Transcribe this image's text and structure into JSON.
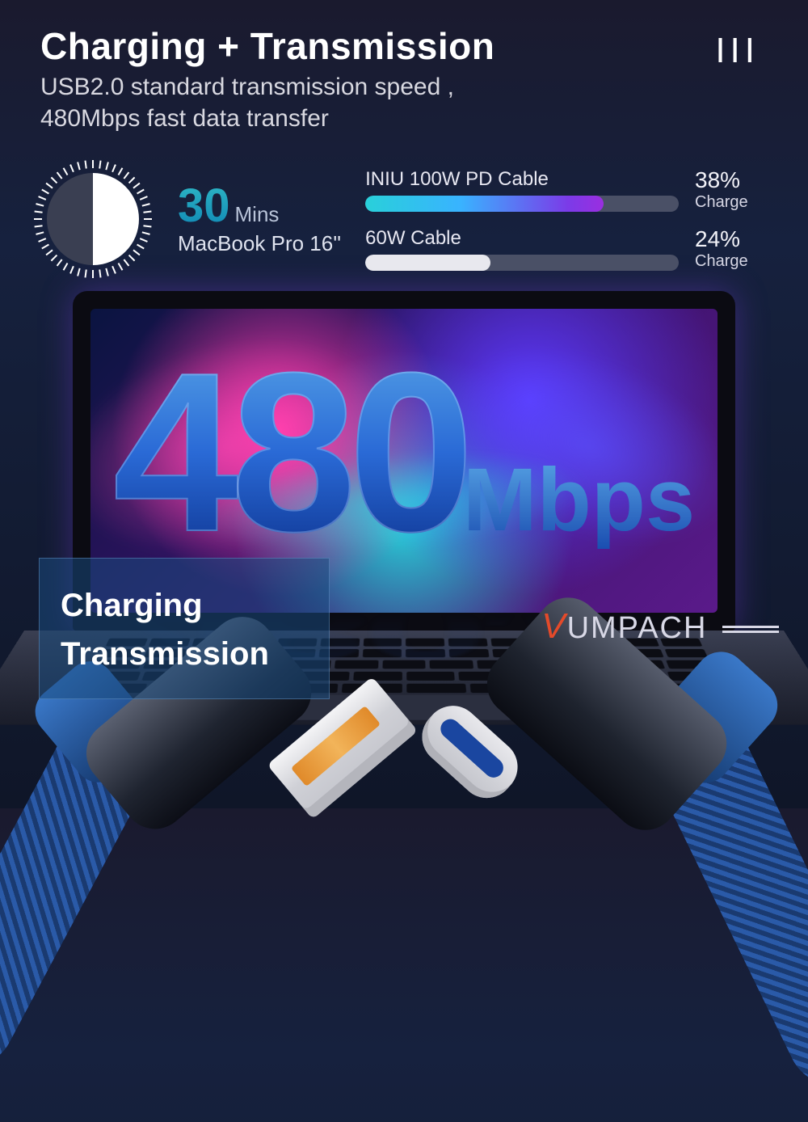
{
  "header": {
    "title": "Charging + Transmission",
    "subtitle_line1": "USB2.0 standard transmission speed ,",
    "subtitle_line2": "480Mbps fast data transfer",
    "page_mark": "III"
  },
  "clock": {
    "fill_deg": 180,
    "fill_color": "#ffffff",
    "empty_color": "#3a3f52",
    "tick_count": 48
  },
  "time": {
    "value": "30",
    "unit": "Mins",
    "device": "MacBook Pro 16''",
    "value_gradient": [
      "#2db5c4",
      "#1088b5"
    ]
  },
  "bars": [
    {
      "label": "INIU 100W PD Cable",
      "percent_label": "38%",
      "sub": "Charge",
      "fill_pct": 76,
      "style": "gradient",
      "gradient": [
        "#29d0da",
        "#39b3ff",
        "#7b3be8",
        "#9a2ee0"
      ]
    },
    {
      "label": "60W Cable",
      "percent_label": "24%",
      "sub": "Charge",
      "fill_pct": 40,
      "style": "plain",
      "fill_color": "#e8e8ee"
    }
  ],
  "speed": {
    "number": "480",
    "unit": "Mbps",
    "number_fontsize": 280,
    "unit_fontsize": 110,
    "gradient": [
      "#5aa8e8",
      "#2a6ad6",
      "#0a2d88"
    ]
  },
  "overlay": {
    "line1": "Charging",
    "line2": "Transmission",
    "bg_color": "rgba(26,74,126,0.55)"
  },
  "brand": {
    "name": "UMPACH",
    "accent_letter": "V",
    "accent_color": "#e44a2a"
  },
  "colors": {
    "page_bg_top": "#1a1a2e",
    "page_bg_bottom": "#0f1628",
    "bar_track": "#4a5066",
    "text_primary": "#ffffff",
    "text_secondary": "#d8d8e0"
  }
}
